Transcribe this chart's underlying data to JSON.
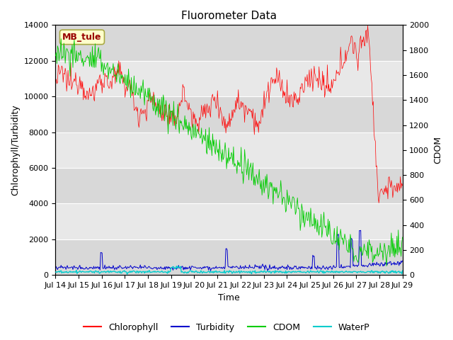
{
  "title": "Fluorometer Data",
  "xlabel": "Time",
  "ylabel_left": "Chlorophyll/Turbidity",
  "ylabel_right": "CDOM",
  "ylim_left": [
    0,
    14000
  ],
  "ylim_right": [
    0,
    2000
  ],
  "xtick_labels": [
    "Jul 14",
    "Jul 15",
    "Jul 16",
    "Jul 17",
    "Jul 18",
    "Jul 19",
    "Jul 20",
    "Jul 21",
    "Jul 22",
    "Jul 23",
    "Jul 24",
    "Jul 25",
    "Jul 26",
    "Jul 27",
    "Jul 28",
    "Jul 29"
  ],
  "station_label": "MB_tule",
  "station_box_color": "#ffffcc",
  "station_text_color": "#990000",
  "plot_bg_color": "#e8e8e8",
  "chlorophyll_color": "#ff0000",
  "turbidity_color": "#0000cc",
  "cdom_color": "#00cc00",
  "waterp_color": "#00cccc",
  "legend_entries": [
    "Chlorophyll",
    "Turbidity",
    "CDOM",
    "WaterP"
  ],
  "n_points": 500,
  "grid_color": "#ffffff",
  "title_fontsize": 11,
  "axis_label_fontsize": 9,
  "tick_fontsize": 8,
  "band_colors": [
    "#e0e0e0",
    "#ebebeb"
  ]
}
